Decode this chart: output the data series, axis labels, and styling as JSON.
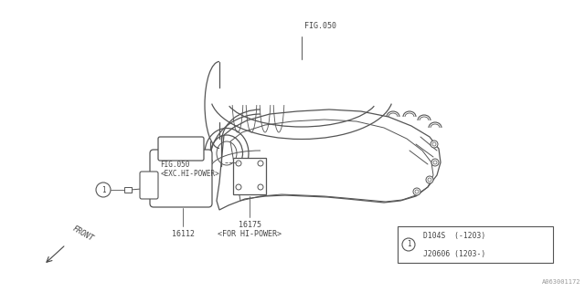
{
  "bg_color": "#ffffff",
  "line_color": "#555555",
  "text_color": "#444444",
  "fig_width": 6.4,
  "fig_height": 3.2,
  "dpi": 100,
  "part_numbers": {
    "fig050_top": "FIG.050",
    "fig050_mid": "FIG.050\n<EXC.HI-POWER>",
    "part_16112": "16112",
    "part_16175": "16175\n<FOR HI-POWER>",
    "front_label": "FRONT",
    "watermark": "A063001172",
    "table_row1_text": "D104S  (-1203)",
    "table_row2_text": "J20606 (1203-)"
  }
}
